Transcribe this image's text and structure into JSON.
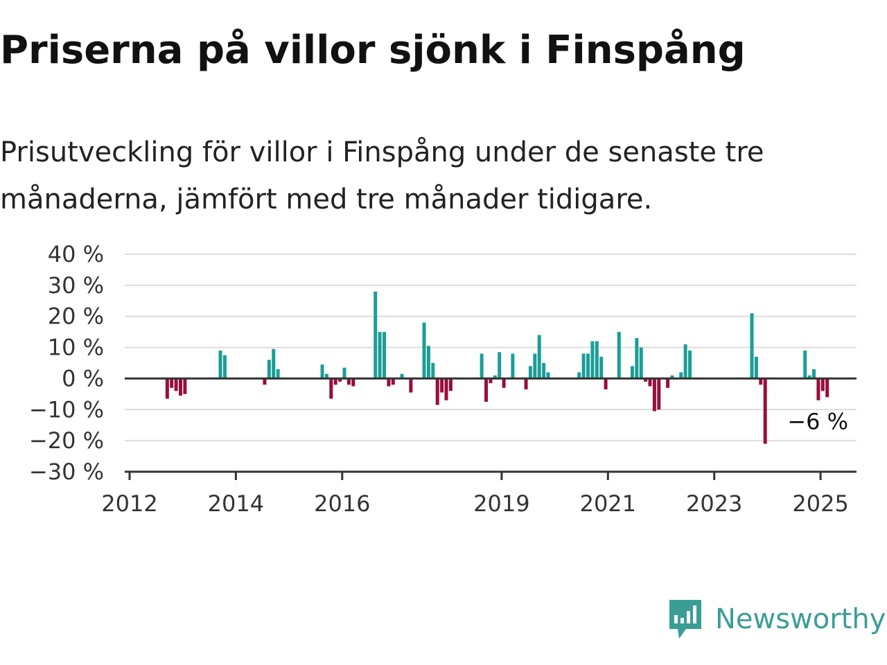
{
  "title": "Priserna på villor sjönk i Finspång",
  "subtitle": "Prisutveckling för villor i Finspång under de senaste tre månaderna, jämfört med tre månader tidigare.",
  "brand": {
    "name": "Newsworthy",
    "color": "#3b9e96"
  },
  "colors": {
    "positive": "#1a9e96",
    "negative": "#990d3d",
    "grid": "#dddddd",
    "axis": "#333333"
  },
  "chart_data": {
    "type": "bar",
    "title": "Priserna på villor sjönk i Finspång",
    "subtitle": "Prisutveckling för villor i Finspång under de senaste tre månaderna, jämfört med tre månader tidigare.",
    "xlabel": "",
    "ylabel": "",
    "ylim": [
      -30,
      40
    ],
    "y_ticks": [
      40,
      30,
      20,
      10,
      0,
      -10,
      -20,
      -30
    ],
    "y_tick_labels": [
      "40 %",
      "30 %",
      "20 %",
      "10 %",
      "0 %",
      "−10 %",
      "−20 %",
      "−30 %"
    ],
    "x_ticks": [
      "2012",
      "2014",
      "2016",
      "2019",
      "2021",
      "2023",
      "2025"
    ],
    "grid": true,
    "annotation": {
      "text": "−6 %",
      "value": -6
    },
    "series": [
      {
        "values": [
          {
            "x": "2012-09",
            "value": -6.5
          },
          {
            "x": "2012-10",
            "value": -3
          },
          {
            "x": "2012-11",
            "value": -4
          },
          {
            "x": "2012-12",
            "value": -5.5
          },
          {
            "x": "2013-01",
            "value": -5
          },
          {
            "x": "2013-09",
            "value": 9
          },
          {
            "x": "2013-10",
            "value": 7.5
          },
          {
            "x": "2014-07",
            "value": -2
          },
          {
            "x": "2014-08",
            "value": 6
          },
          {
            "x": "2014-09",
            "value": 9.5
          },
          {
            "x": "2014-10",
            "value": 3
          },
          {
            "x": "2015-08",
            "value": 4.5
          },
          {
            "x": "2015-09",
            "value": 1.5
          },
          {
            "x": "2015-10",
            "value": -6.5
          },
          {
            "x": "2015-11",
            "value": -2
          },
          {
            "x": "2015-12",
            "value": -1
          },
          {
            "x": "2016-01",
            "value": 3.5
          },
          {
            "x": "2016-02",
            "value": -2
          },
          {
            "x": "2016-03",
            "value": -2.5
          },
          {
            "x": "2016-08",
            "value": 28
          },
          {
            "x": "2016-09",
            "value": 15
          },
          {
            "x": "2016-10",
            "value": 15
          },
          {
            "x": "2016-11",
            "value": -2.5
          },
          {
            "x": "2016-12",
            "value": -2
          },
          {
            "x": "2017-02",
            "value": 1.5
          },
          {
            "x": "2017-04",
            "value": -4.5
          },
          {
            "x": "2017-07",
            "value": 18
          },
          {
            "x": "2017-08",
            "value": 10.5
          },
          {
            "x": "2017-09",
            "value": 5
          },
          {
            "x": "2017-10",
            "value": -8.5
          },
          {
            "x": "2017-11",
            "value": -4.5
          },
          {
            "x": "2017-12",
            "value": -7
          },
          {
            "x": "2018-01",
            "value": -4
          },
          {
            "x": "2018-08",
            "value": 8
          },
          {
            "x": "2018-09",
            "value": -7.5
          },
          {
            "x": "2018-10",
            "value": -1.5
          },
          {
            "x": "2018-11",
            "value": 1
          },
          {
            "x": "2018-12",
            "value": 8.5
          },
          {
            "x": "2019-01",
            "value": -3
          },
          {
            "x": "2019-03",
            "value": 8
          },
          {
            "x": "2019-06",
            "value": -3.5
          },
          {
            "x": "2019-07",
            "value": 4
          },
          {
            "x": "2019-08",
            "value": 8
          },
          {
            "x": "2019-09",
            "value": 14
          },
          {
            "x": "2019-10",
            "value": 5
          },
          {
            "x": "2019-11",
            "value": 2
          },
          {
            "x": "2020-06",
            "value": 2
          },
          {
            "x": "2020-07",
            "value": 8
          },
          {
            "x": "2020-08",
            "value": 8
          },
          {
            "x": "2020-09",
            "value": 12
          },
          {
            "x": "2020-10",
            "value": 12
          },
          {
            "x": "2020-11",
            "value": 7
          },
          {
            "x": "2020-12",
            "value": -3.5
          },
          {
            "x": "2021-03",
            "value": 15
          },
          {
            "x": "2021-06",
            "value": 4
          },
          {
            "x": "2021-07",
            "value": 13
          },
          {
            "x": "2021-08",
            "value": 10
          },
          {
            "x": "2021-09",
            "value": -1
          },
          {
            "x": "2021-10",
            "value": -2.5
          },
          {
            "x": "2021-11",
            "value": -10.5
          },
          {
            "x": "2021-12",
            "value": -10
          },
          {
            "x": "2022-02",
            "value": -3
          },
          {
            "x": "2022-03",
            "value": 1
          },
          {
            "x": "2022-05",
            "value": 2
          },
          {
            "x": "2022-06",
            "value": 11
          },
          {
            "x": "2022-07",
            "value": 9
          },
          {
            "x": "2023-09",
            "value": 21
          },
          {
            "x": "2023-10",
            "value": 7
          },
          {
            "x": "2023-11",
            "value": -2
          },
          {
            "x": "2023-12",
            "value": -21
          },
          {
            "x": "2024-09",
            "value": 9
          },
          {
            "x": "2024-10",
            "value": 1
          },
          {
            "x": "2024-11",
            "value": 3
          },
          {
            "x": "2024-12",
            "value": -7
          },
          {
            "x": "2025-01",
            "value": -4
          },
          {
            "x": "2025-02",
            "value": -6
          }
        ]
      }
    ]
  }
}
